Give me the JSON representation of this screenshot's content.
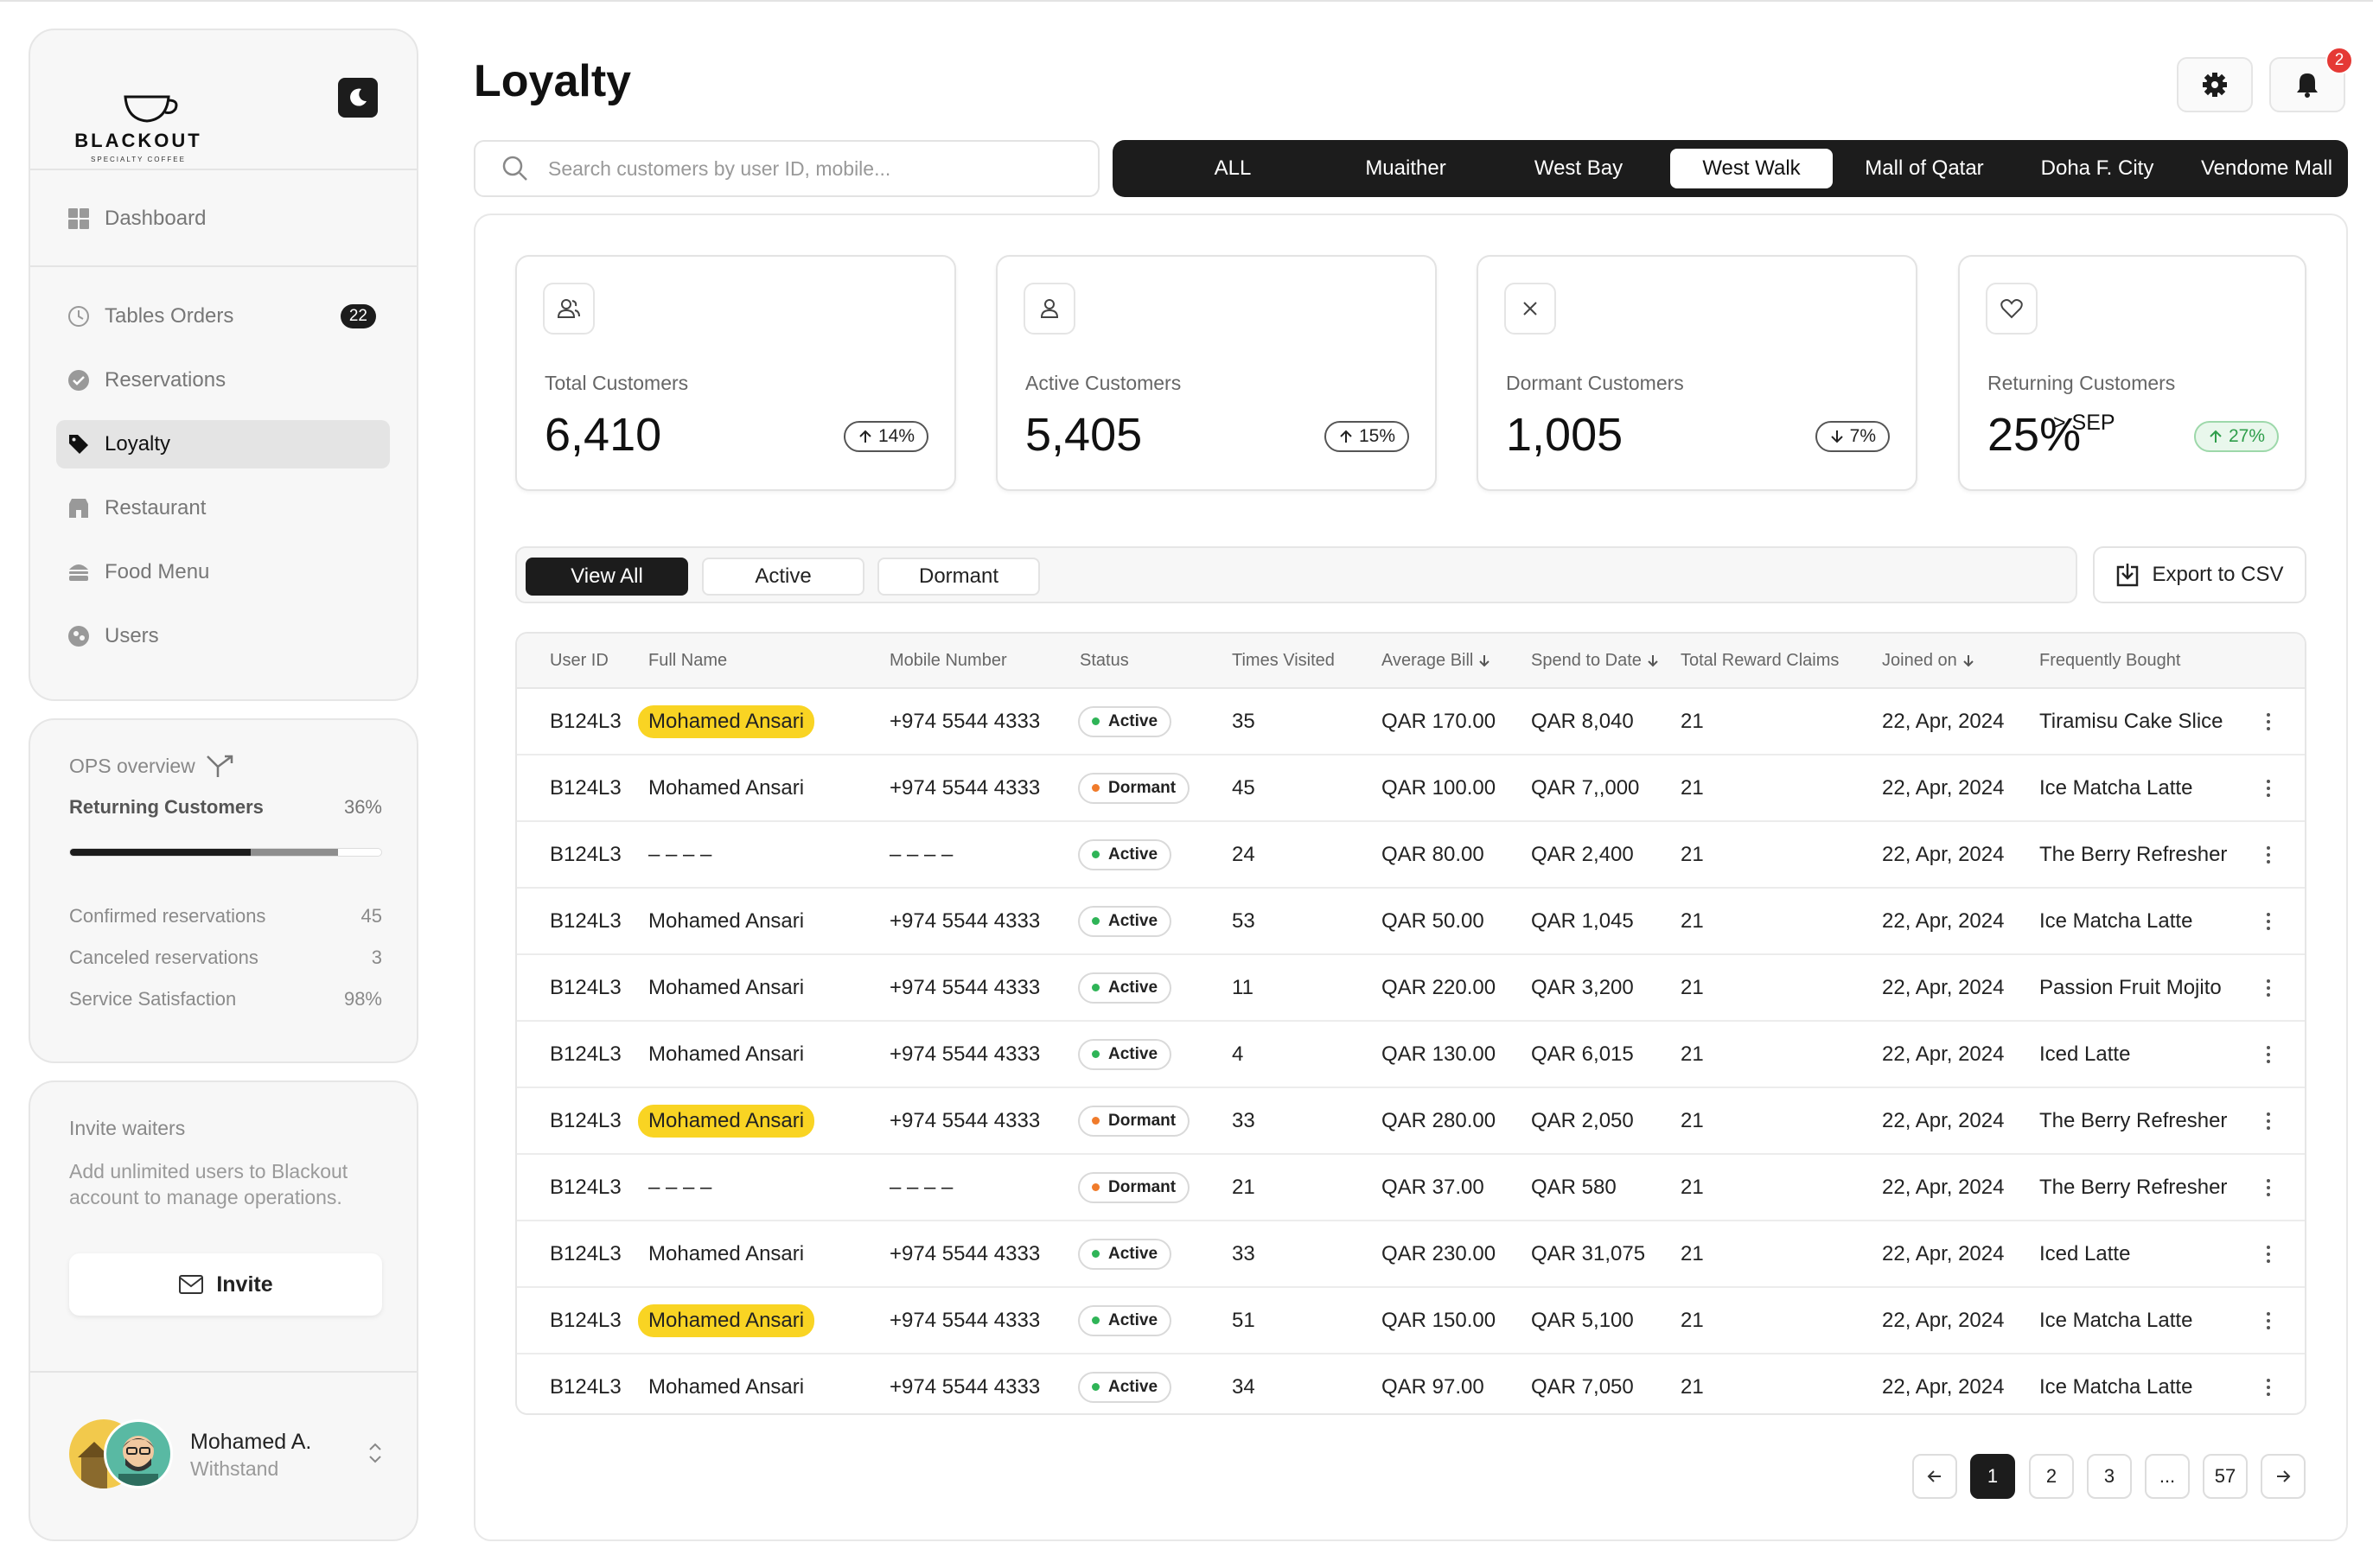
{
  "brand": {
    "name": "BLACKOUT",
    "tagline": "SPECIALTY COFFEE"
  },
  "sidebar": {
    "items": [
      {
        "label": "Dashboard",
        "icon": "grid-icon"
      },
      {
        "label": "Tables Orders",
        "icon": "clock-icon",
        "badge": "22"
      },
      {
        "label": "Reservations",
        "icon": "check-circle-icon"
      },
      {
        "label": "Loyalty",
        "icon": "tag-icon",
        "active": true
      },
      {
        "label": "Restaurant",
        "icon": "store-icon"
      },
      {
        "label": "Food Menu",
        "icon": "burger-icon"
      },
      {
        "label": "Users",
        "icon": "users-icon"
      }
    ]
  },
  "ops": {
    "title": "OPS overview",
    "returning_label": "Returning Customers",
    "returning_value": "36%",
    "progress": {
      "primary": 0.58,
      "secondary": 0.86
    },
    "rows": [
      {
        "label": "Confirmed reservations",
        "value": "45"
      },
      {
        "label": "Canceled reservations",
        "value": "3"
      },
      {
        "label": "Service Satisfaction",
        "value": "98%"
      }
    ]
  },
  "invite": {
    "title": "Invite waiters",
    "description": "Add unlimited users to Blackout account to manage operations.",
    "button": "Invite"
  },
  "user": {
    "name": "Mohamed A.",
    "role": "Withstand"
  },
  "page": {
    "title": "Loyalty",
    "notifications": "2"
  },
  "search": {
    "placeholder": "Search customers by user ID, mobile..."
  },
  "locations": [
    "ALL",
    "Muaither",
    "West Bay",
    "West Walk",
    "Mall of Qatar",
    "Doha F. City",
    "Vendome Mall"
  ],
  "selected_location": "West Walk",
  "stats": [
    {
      "label": "Total Customers",
      "value": "6,410",
      "change": "14%",
      "dir": "up",
      "icon": "users-icon"
    },
    {
      "label": "Active Customers",
      "value": "5,405",
      "change": "15%",
      "dir": "up",
      "icon": "user-icon"
    },
    {
      "label": "Dormant Customers",
      "value": "1,005",
      "change": "7%",
      "dir": "down",
      "icon": "x-icon"
    },
    {
      "label": "Returning Customers",
      "value": "25%",
      "sup": "> SEP",
      "change": "27%",
      "dir": "up",
      "icon": "heart-icon",
      "green": true
    }
  ],
  "filters": [
    "View All",
    "Active",
    "Dormant"
  ],
  "export_label": "Export to CSV",
  "table": {
    "headers": [
      "User ID",
      "Full Name",
      "Mobile Number",
      "Status",
      "Times Visited",
      "Average Bill",
      "Spend to Date",
      "Total Reward Claims",
      "Joined on",
      "Frequently Bought"
    ],
    "rows": [
      {
        "id": "B124L3",
        "name": "Mohamed Ansari",
        "hl": true,
        "mobile": "+974 5544 4333",
        "status": "Active",
        "visits": "35",
        "avg": "QAR 170.00",
        "spend": "QAR 8,040",
        "claims": "21",
        "joined": "22, Apr, 2024",
        "item": "Tiramisu Cake Slice"
      },
      {
        "id": "B124L3",
        "name": "Mohamed Ansari",
        "hl": false,
        "mobile": "+974 5544 4333",
        "status": "Dormant",
        "visits": "45",
        "avg": "QAR 100.00",
        "spend": "QAR 7,,000",
        "claims": "21",
        "joined": "22, Apr, 2024",
        "item": "Ice Matcha Latte"
      },
      {
        "id": "B124L3",
        "name": "– – – –",
        "hl": false,
        "mobile": "– – – –",
        "status": "Active",
        "visits": "24",
        "avg": "QAR 80.00",
        "spend": "QAR 2,400",
        "claims": "21",
        "joined": "22, Apr, 2024",
        "item": "The Berry Refresher"
      },
      {
        "id": "B124L3",
        "name": "Mohamed Ansari",
        "hl": false,
        "mobile": "+974 5544 4333",
        "status": "Active",
        "visits": "53",
        "avg": "QAR 50.00",
        "spend": "QAR 1,045",
        "claims": "21",
        "joined": "22, Apr, 2024",
        "item": "Ice Matcha Latte"
      },
      {
        "id": "B124L3",
        "name": "Mohamed Ansari",
        "hl": false,
        "mobile": "+974 5544 4333",
        "status": "Active",
        "visits": "11",
        "avg": "QAR 220.00",
        "spend": "QAR 3,200",
        "claims": "21",
        "joined": "22, Apr, 2024",
        "item": "Passion Fruit Mojito"
      },
      {
        "id": "B124L3",
        "name": "Mohamed Ansari",
        "hl": false,
        "mobile": "+974 5544 4333",
        "status": "Active",
        "visits": "4",
        "avg": "QAR 130.00",
        "spend": "QAR 6,015",
        "claims": "21",
        "joined": "22, Apr, 2024",
        "item": "Iced Latte"
      },
      {
        "id": "B124L3",
        "name": "Mohamed Ansari",
        "hl": true,
        "mobile": "+974 5544 4333",
        "status": "Dormant",
        "visits": "33",
        "avg": "QAR 280.00",
        "spend": "QAR 2,050",
        "claims": "21",
        "joined": "22, Apr, 2024",
        "item": "The Berry Refresher"
      },
      {
        "id": "B124L3",
        "name": "– – – –",
        "hl": false,
        "mobile": "– – – –",
        "status": "Dormant",
        "visits": "21",
        "avg": "QAR 37.00",
        "spend": "QAR 580",
        "claims": "21",
        "joined": "22, Apr, 2024",
        "item": "The Berry Refresher"
      },
      {
        "id": "B124L3",
        "name": "Mohamed Ansari",
        "hl": false,
        "mobile": "+974 5544 4333",
        "status": "Active",
        "visits": "33",
        "avg": "QAR 230.00",
        "spend": "QAR 31,075",
        "claims": "21",
        "joined": "22, Apr, 2024",
        "item": "Iced Latte"
      },
      {
        "id": "B124L3",
        "name": "Mohamed Ansari",
        "hl": true,
        "mobile": "+974 5544 4333",
        "status": "Active",
        "visits": "51",
        "avg": "QAR 150.00",
        "spend": "QAR 5,100",
        "claims": "21",
        "joined": "22, Apr, 2024",
        "item": "Ice Matcha Latte"
      },
      {
        "id": "B124L3",
        "name": "Mohamed Ansari",
        "hl": false,
        "mobile": "+974 5544 4333",
        "status": "Active",
        "visits": "34",
        "avg": "QAR 97.00",
        "spend": "QAR 7,050",
        "claims": "21",
        "joined": "22, Apr, 2024",
        "item": "Ice Matcha Latte"
      }
    ]
  },
  "pagination": [
    "1",
    "2",
    "3",
    "...",
    "57"
  ],
  "colors": {
    "dark": "#1c1c1c",
    "highlight": "#f9d423",
    "active_dot": "#2fb457",
    "dormant_dot": "#f07b2b",
    "positive": "#2f9e4b",
    "badge": "#e53935"
  }
}
